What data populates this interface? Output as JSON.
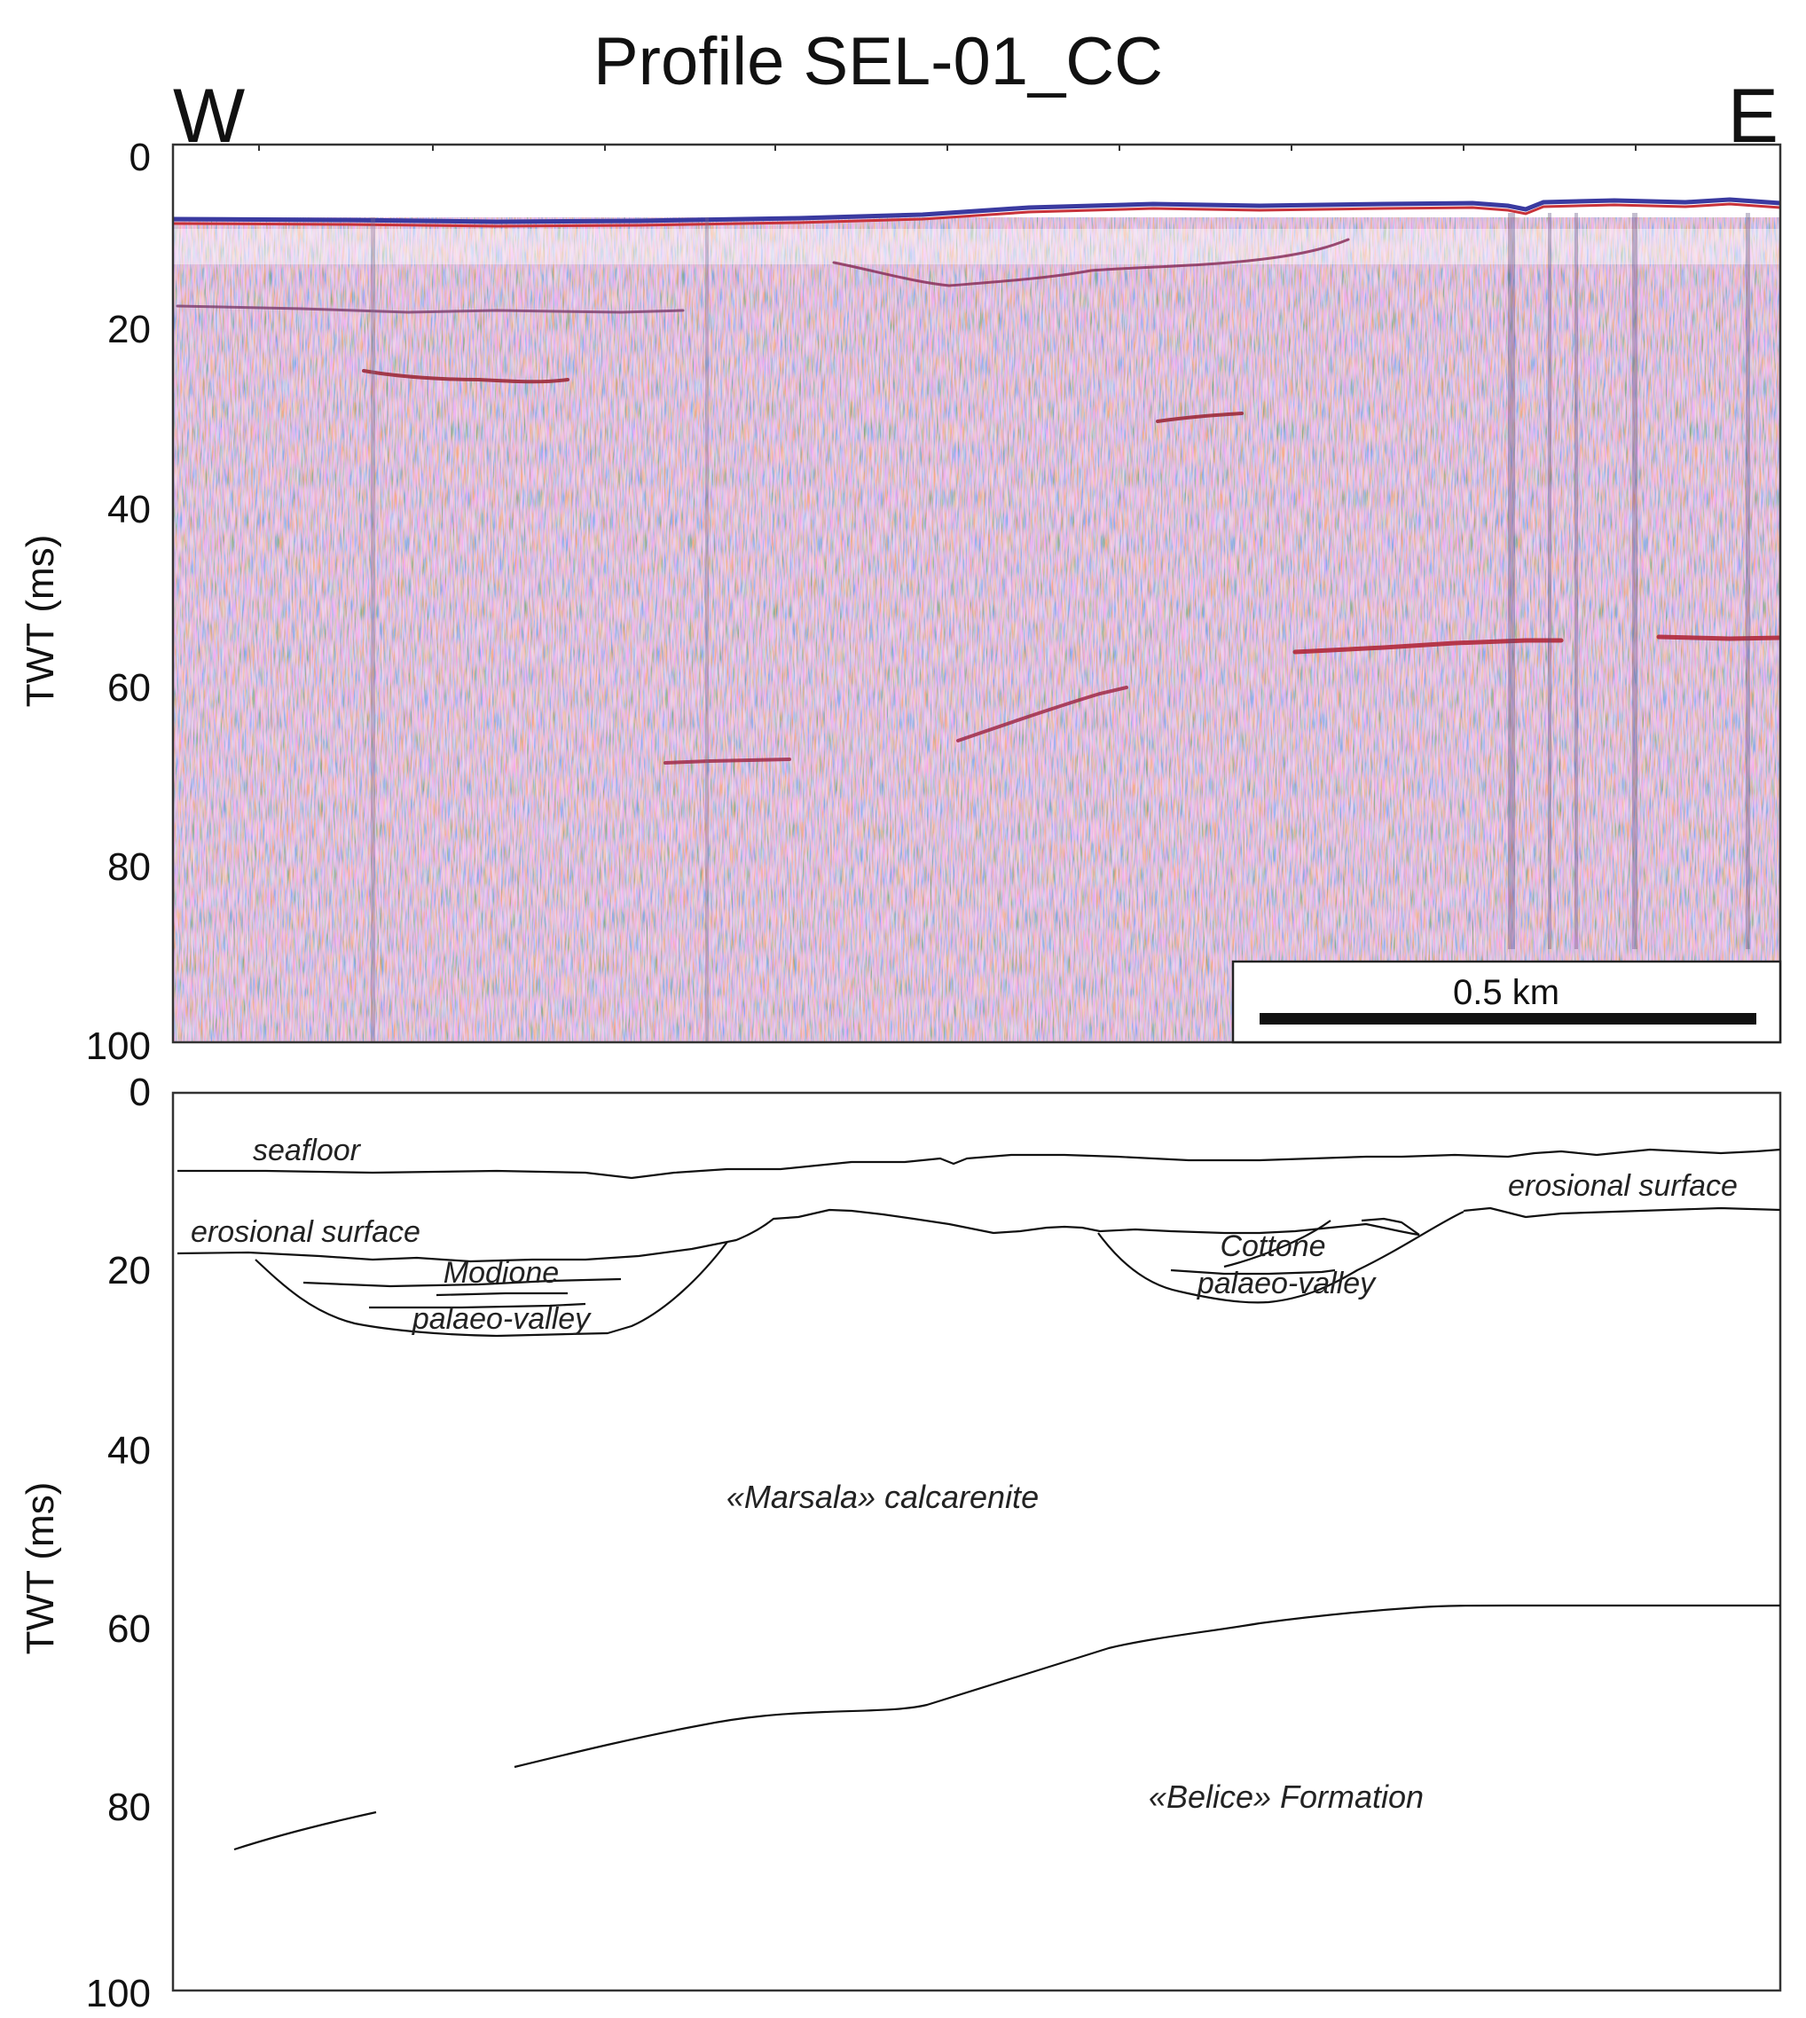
{
  "figure": {
    "title": "Profile SEL-01_CC",
    "direction_left": "W",
    "direction_right": "E"
  },
  "seismic_panel": {
    "ylabel": "TWT (ms)",
    "yticks": [
      "0",
      "20",
      "40",
      "60",
      "80",
      "100"
    ],
    "scale_bar_label": "0.5 km",
    "colors": {
      "positive": "#c8323a",
      "negative": "#3446b4",
      "background": "#efe4ec"
    }
  },
  "interpretation_panel": {
    "ylabel": "TWT (ms)",
    "yticks": [
      "0",
      "20",
      "40",
      "60",
      "80",
      "100"
    ],
    "labels": {
      "seafloor": "seafloor",
      "erosional_west": "erosional surface",
      "erosional_east": "erosional surface",
      "modione_1": "Modione",
      "modione_2": "palaeo-valley",
      "cottone_1": "Cottone",
      "cottone_2": "palaeo-valley",
      "marsala": "«Marsala» calcarenite",
      "belice": "«Belice» Formation"
    }
  }
}
